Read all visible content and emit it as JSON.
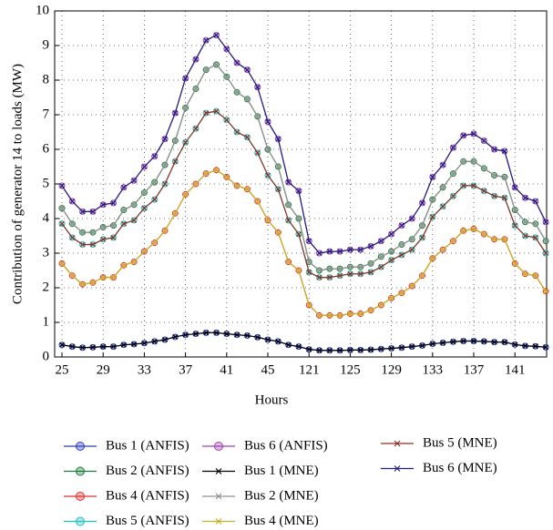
{
  "chart_data": {
    "type": "line",
    "x_label": "Hours",
    "y_label": "Contribution of generator 14 to loads (MW)",
    "categories": [
      "25",
      null,
      null,
      null,
      "29",
      null,
      null,
      null,
      "33",
      null,
      null,
      null,
      "37",
      null,
      null,
      null,
      "41",
      null,
      null,
      null,
      "45",
      null,
      null,
      null,
      "121",
      null,
      null,
      null,
      "125",
      null,
      null,
      null,
      "129",
      null,
      null,
      null,
      "133",
      null,
      null,
      null,
      "137",
      null,
      null,
      null,
      "141",
      null,
      null,
      null
    ],
    "ylim": [
      0,
      10
    ],
    "yticks": [
      0,
      1,
      2,
      3,
      4,
      5,
      6,
      7,
      8,
      9,
      10
    ],
    "grid": true,
    "series": [
      {
        "name": "Bus 1 (ANFIS)",
        "color": "#2a3dbf",
        "marker": "circle",
        "values": [
          0.35,
          0.3,
          0.27,
          0.28,
          0.3,
          0.3,
          0.35,
          0.37,
          0.4,
          0.45,
          0.5,
          0.58,
          0.64,
          0.67,
          0.7,
          0.7,
          0.67,
          0.64,
          0.62,
          0.57,
          0.5,
          0.45,
          0.35,
          0.3,
          0.22,
          0.19,
          0.19,
          0.19,
          0.2,
          0.2,
          0.21,
          0.23,
          0.25,
          0.27,
          0.3,
          0.33,
          0.38,
          0.41,
          0.44,
          0.46,
          0.46,
          0.45,
          0.43,
          0.43,
          0.36,
          0.32,
          0.31,
          0.28
        ]
      },
      {
        "name": "Bus 2 (ANFIS)",
        "color": "#1a7a3a",
        "marker": "circle",
        "values": [
          4.3,
          3.85,
          3.6,
          3.6,
          3.75,
          3.8,
          4.25,
          4.4,
          4.75,
          5.05,
          5.55,
          6.25,
          7.2,
          7.75,
          8.3,
          8.45,
          8.1,
          7.65,
          7.45,
          6.95,
          6.0,
          5.5,
          4.4,
          4.0,
          2.75,
          2.5,
          2.55,
          2.55,
          2.6,
          2.6,
          2.7,
          2.9,
          3.05,
          3.25,
          3.4,
          3.8,
          4.55,
          4.9,
          5.3,
          5.65,
          5.65,
          5.45,
          5.25,
          5.2,
          4.25,
          3.9,
          3.85,
          3.35
        ]
      },
      {
        "name": "Bus 4 (ANFIS)",
        "color": "#e03030",
        "marker": "circle",
        "values": [
          2.7,
          2.35,
          2.1,
          2.15,
          2.3,
          2.3,
          2.65,
          2.75,
          3.05,
          3.3,
          3.65,
          4.15,
          4.7,
          5.0,
          5.3,
          5.4,
          5.2,
          4.95,
          4.85,
          4.5,
          3.95,
          3.6,
          2.75,
          2.5,
          1.5,
          1.2,
          1.2,
          1.2,
          1.25,
          1.25,
          1.35,
          1.5,
          1.7,
          1.85,
          2.05,
          2.35,
          2.85,
          3.1,
          3.35,
          3.65,
          3.7,
          3.55,
          3.4,
          3.4,
          2.7,
          2.4,
          2.35,
          1.9
        ]
      },
      {
        "name": "Bus 5 (ANFIS)",
        "color": "#20c0c0",
        "marker": "circle",
        "values": [
          3.85,
          3.45,
          3.25,
          3.25,
          3.4,
          3.45,
          3.85,
          3.95,
          4.3,
          4.55,
          5.0,
          5.65,
          6.2,
          6.6,
          7.05,
          7.1,
          6.85,
          6.5,
          6.35,
          5.9,
          5.25,
          4.85,
          3.95,
          3.55,
          2.45,
          2.3,
          2.3,
          2.35,
          2.4,
          2.4,
          2.45,
          2.6,
          2.8,
          2.95,
          3.1,
          3.45,
          4.05,
          4.35,
          4.65,
          4.95,
          4.95,
          4.8,
          4.65,
          4.6,
          3.8,
          3.5,
          3.45,
          3.0
        ]
      },
      {
        "name": "Bus 6 (ANFIS)",
        "color": "#a040b0",
        "marker": "circle",
        "values": [
          4.95,
          4.5,
          4.2,
          4.2,
          4.4,
          4.45,
          4.9,
          5.1,
          5.5,
          5.8,
          6.3,
          7.05,
          8.05,
          8.6,
          9.15,
          9.3,
          8.9,
          8.5,
          8.3,
          7.8,
          6.8,
          6.3,
          5.05,
          4.8,
          3.35,
          3.0,
          3.05,
          3.05,
          3.1,
          3.1,
          3.2,
          3.35,
          3.55,
          3.8,
          4.0,
          4.45,
          5.2,
          5.55,
          6.05,
          6.4,
          6.45,
          6.25,
          6.0,
          5.95,
          4.9,
          4.6,
          4.5,
          3.9
        ]
      },
      {
        "name": "Bus 1 (MNE)",
        "color": "#000000",
        "marker": "x",
        "values": [
          0.35,
          0.3,
          0.27,
          0.28,
          0.3,
          0.3,
          0.35,
          0.37,
          0.4,
          0.45,
          0.5,
          0.58,
          0.64,
          0.67,
          0.7,
          0.7,
          0.67,
          0.64,
          0.62,
          0.57,
          0.5,
          0.45,
          0.35,
          0.3,
          0.22,
          0.19,
          0.19,
          0.19,
          0.2,
          0.2,
          0.21,
          0.23,
          0.25,
          0.27,
          0.3,
          0.33,
          0.38,
          0.41,
          0.44,
          0.46,
          0.46,
          0.45,
          0.43,
          0.43,
          0.36,
          0.32,
          0.31,
          0.28
        ]
      },
      {
        "name": "Bus 2 (MNE)",
        "color": "#909090",
        "marker": "x",
        "values": [
          4.3,
          3.85,
          3.6,
          3.6,
          3.75,
          3.8,
          4.25,
          4.4,
          4.75,
          5.05,
          5.55,
          6.25,
          7.2,
          7.75,
          8.3,
          8.45,
          8.1,
          7.65,
          7.45,
          6.95,
          6.0,
          5.5,
          4.4,
          4.0,
          2.75,
          2.5,
          2.55,
          2.55,
          2.6,
          2.6,
          2.7,
          2.9,
          3.05,
          3.25,
          3.4,
          3.8,
          4.55,
          4.9,
          5.3,
          5.65,
          5.65,
          5.45,
          5.25,
          5.2,
          4.25,
          3.9,
          3.85,
          3.35
        ]
      },
      {
        "name": "Bus 4 (MNE)",
        "color": "#c8b020",
        "marker": "x",
        "values": [
          2.7,
          2.35,
          2.1,
          2.15,
          2.3,
          2.3,
          2.65,
          2.75,
          3.05,
          3.3,
          3.65,
          4.15,
          4.7,
          5.0,
          5.3,
          5.4,
          5.2,
          4.95,
          4.85,
          4.5,
          3.95,
          3.6,
          2.75,
          2.5,
          1.5,
          1.2,
          1.2,
          1.2,
          1.25,
          1.25,
          1.35,
          1.5,
          1.7,
          1.85,
          2.05,
          2.35,
          2.85,
          3.1,
          3.35,
          3.65,
          3.7,
          3.55,
          3.4,
          3.4,
          2.7,
          2.4,
          2.35,
          1.9
        ]
      },
      {
        "name": "Bus 5 (MNE)",
        "color": "#8b3020",
        "marker": "x",
        "values": [
          3.85,
          3.45,
          3.25,
          3.25,
          3.4,
          3.45,
          3.85,
          3.95,
          4.3,
          4.55,
          5.0,
          5.65,
          6.2,
          6.6,
          7.05,
          7.1,
          6.85,
          6.5,
          6.35,
          5.9,
          5.25,
          4.85,
          3.95,
          3.55,
          2.45,
          2.3,
          2.3,
          2.35,
          2.4,
          2.4,
          2.45,
          2.6,
          2.8,
          2.95,
          3.1,
          3.45,
          4.05,
          4.35,
          4.65,
          4.95,
          4.95,
          4.8,
          4.65,
          4.6,
          3.8,
          3.5,
          3.45,
          3.0
        ]
      },
      {
        "name": "Bus 6 (MNE)",
        "color": "#202080",
        "marker": "x",
        "values": [
          4.95,
          4.5,
          4.2,
          4.2,
          4.4,
          4.45,
          4.9,
          5.1,
          5.5,
          5.8,
          6.3,
          7.05,
          8.05,
          8.6,
          9.15,
          9.3,
          8.9,
          8.5,
          8.3,
          7.8,
          6.8,
          6.3,
          5.05,
          4.8,
          3.35,
          3.0,
          3.05,
          3.05,
          3.1,
          3.1,
          3.2,
          3.35,
          3.55,
          3.8,
          4.0,
          4.45,
          5.2,
          5.55,
          6.05,
          6.4,
          6.45,
          6.25,
          6.0,
          5.95,
          4.9,
          4.6,
          4.5,
          3.9
        ]
      }
    ]
  }
}
